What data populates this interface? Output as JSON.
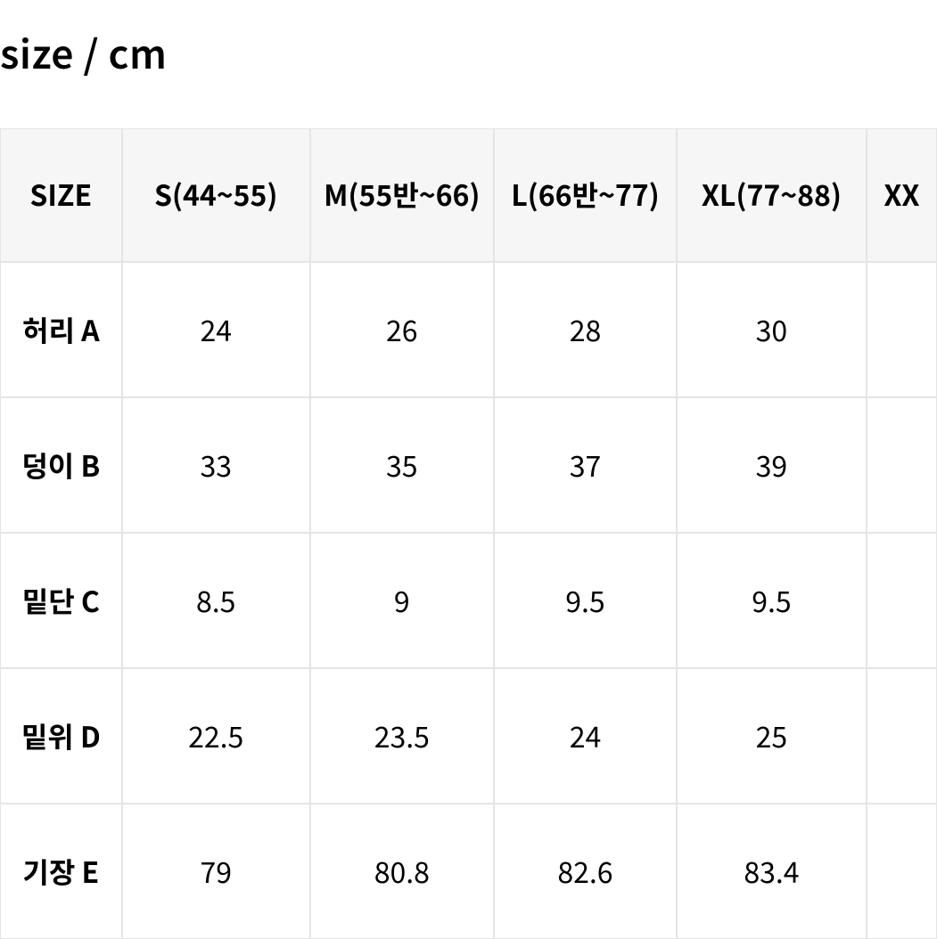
{
  "title": "size / cm",
  "table": {
    "columns": [
      "SIZE",
      "S(44~55)",
      "M(55반~66)",
      "L(66반~77)",
      "XL(77~88)",
      "XX"
    ],
    "rows": [
      {
        "label": "허리 A",
        "cells": [
          "24",
          "26",
          "28",
          "30",
          ""
        ]
      },
      {
        "label": "덩이 B",
        "cells": [
          "33",
          "35",
          "37",
          "39",
          ""
        ]
      },
      {
        "label": "밑단 C",
        "cells": [
          "8.5",
          "9",
          "9.5",
          "9.5",
          ""
        ]
      },
      {
        "label": "밑위 D",
        "cells": [
          "22.5",
          "23.5",
          "24",
          "25",
          ""
        ]
      },
      {
        "label": "기장 E",
        "cells": [
          "79",
          "80.8",
          "82.6",
          "83.4",
          ""
        ]
      }
    ]
  },
  "style": {
    "header_bg": "#f6f6f6",
    "border_color": "#e5e5e5",
    "text_color": "#000000",
    "bg_color": "#ffffff",
    "title_fontsize": 44,
    "header_fontsize": 32,
    "cell_fontsize": 32
  }
}
